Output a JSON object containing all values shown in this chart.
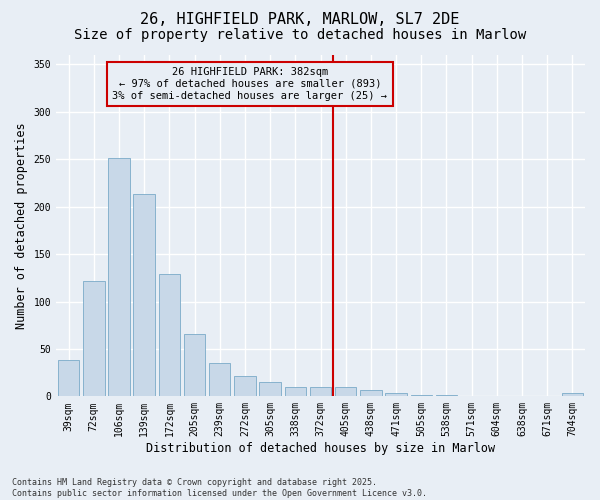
{
  "title": "26, HIGHFIELD PARK, MARLOW, SL7 2DE",
  "subtitle": "Size of property relative to detached houses in Marlow",
  "xlabel": "Distribution of detached houses by size in Marlow",
  "ylabel": "Number of detached properties",
  "categories": [
    "39sqm",
    "72sqm",
    "106sqm",
    "139sqm",
    "172sqm",
    "205sqm",
    "239sqm",
    "272sqm",
    "305sqm",
    "338sqm",
    "372sqm",
    "405sqm",
    "438sqm",
    "471sqm",
    "505sqm",
    "538sqm",
    "571sqm",
    "604sqm",
    "638sqm",
    "671sqm",
    "704sqm"
  ],
  "values": [
    38,
    122,
    251,
    213,
    129,
    66,
    35,
    21,
    15,
    10,
    10,
    10,
    7,
    3,
    1,
    1,
    0,
    0,
    0,
    0,
    3
  ],
  "bar_color": "#c8d8e8",
  "bar_edge_color": "#7aaac8",
  "background_color": "#e8eef5",
  "grid_color": "#ffffff",
  "vline_x_index": 10.5,
  "vline_color": "#cc0000",
  "annotation_text": "26 HIGHFIELD PARK: 382sqm\n← 97% of detached houses are smaller (893)\n3% of semi-detached houses are larger (25) →",
  "annotation_box_color": "#cc0000",
  "ylim": [
    0,
    360
  ],
  "yticks": [
    0,
    50,
    100,
    150,
    200,
    250,
    300,
    350
  ],
  "footer": "Contains HM Land Registry data © Crown copyright and database right 2025.\nContains public sector information licensed under the Open Government Licence v3.0.",
  "title_fontsize": 11,
  "subtitle_fontsize": 10,
  "axis_fontsize": 8.5,
  "tick_fontsize": 7,
  "annotation_fontsize": 7.5,
  "footer_fontsize": 6
}
